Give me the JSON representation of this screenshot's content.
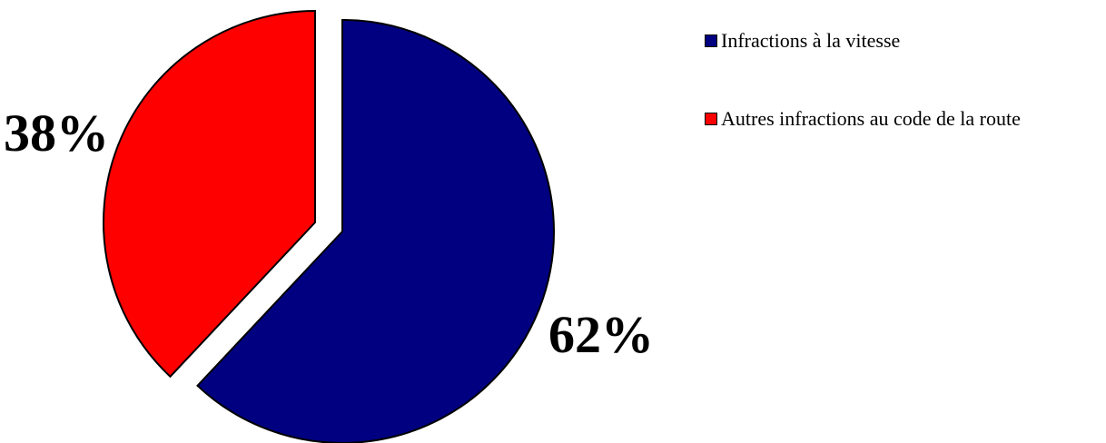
{
  "chart_data": {
    "type": "pie",
    "title": "",
    "exploded": true,
    "legend_position": "right",
    "series": [
      {
        "name": "Infractions à la vitesse",
        "value": 62,
        "label": "62%",
        "color": "#000080"
      },
      {
        "name": "Autres infractions au code de la route",
        "value": 38,
        "label": "38%",
        "color": "#FF0000"
      }
    ]
  }
}
